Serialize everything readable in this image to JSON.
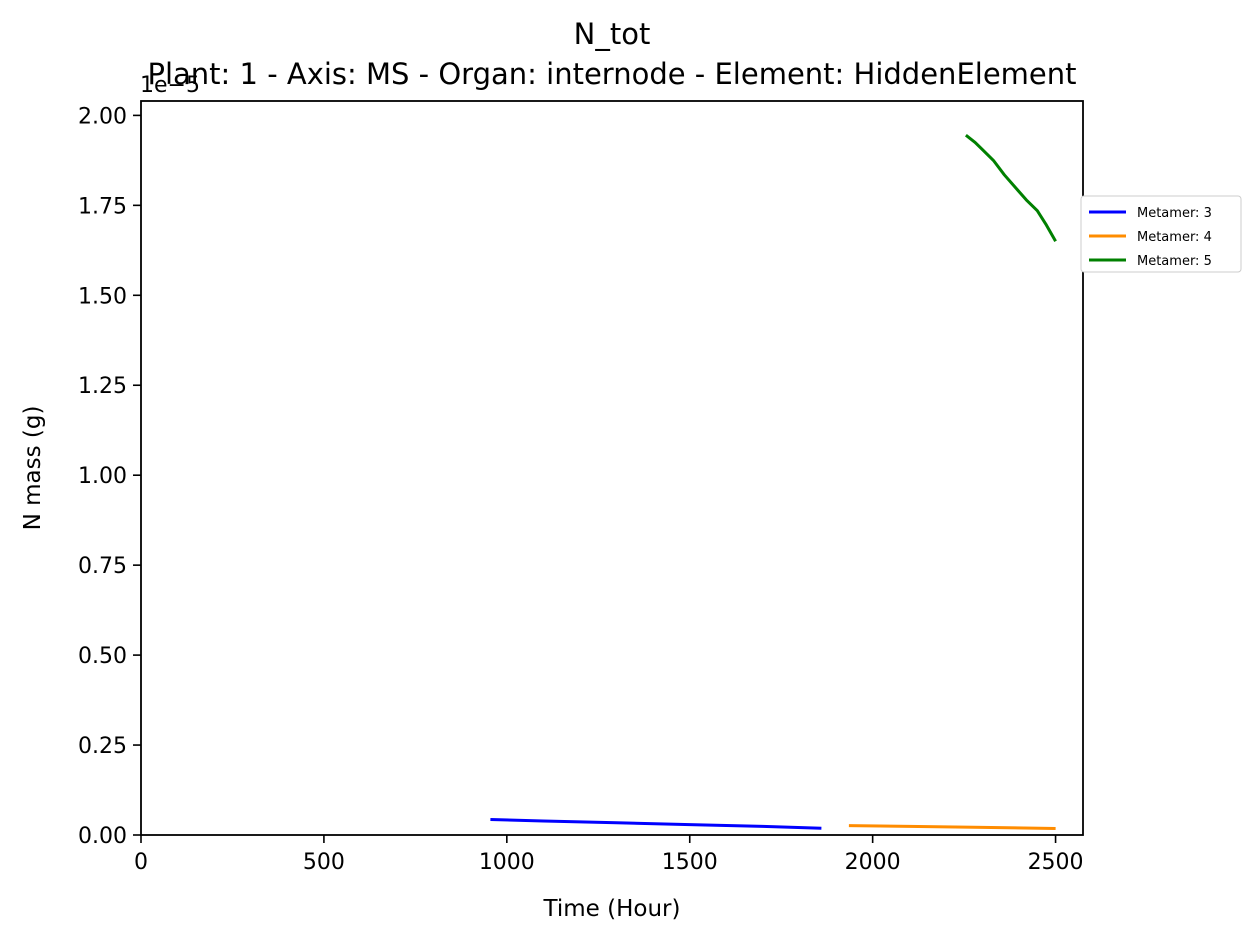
{
  "chart_data": {
    "type": "line",
    "title": "N_tot",
    "subtitle": "Plant: 1 - Axis: MS - Organ: internode - Element: HiddenElement",
    "xlabel": "Time (Hour)",
    "ylabel": "N mass (g)",
    "y_offset_label": "1e−5",
    "xlim": [
      0,
      2575
    ],
    "ylim": [
      0,
      2.04
    ],
    "xticks": [
      0,
      500,
      1000,
      1500,
      2000,
      2500
    ],
    "xtick_labels": [
      "0",
      "500",
      "1000",
      "1500",
      "2000",
      "2500"
    ],
    "yticks": [
      0,
      0.25,
      0.5,
      0.75,
      1.0,
      1.25,
      1.5,
      1.75,
      2.0
    ],
    "ytick_labels": [
      "0.00",
      "0.25",
      "0.50",
      "0.75",
      "1.00",
      "1.25",
      "1.50",
      "1.75",
      "2.00"
    ],
    "grid": false,
    "legend_position": "right",
    "series": [
      {
        "name": "Metamer: 3",
        "color": "#0000ff",
        "x": [
          955,
          1100,
          1300,
          1500,
          1700,
          1860
        ],
        "y": [
          0.043,
          0.039,
          0.034,
          0.029,
          0.024,
          0.019
        ]
      },
      {
        "name": "Metamer: 4",
        "color": "#ff8c00",
        "x": [
          1935,
          2100,
          2300,
          2500
        ],
        "y": [
          0.026,
          0.024,
          0.021,
          0.018
        ]
      },
      {
        "name": "Metamer: 5",
        "color": "#008000",
        "x": [
          2255,
          2280,
          2300,
          2330,
          2360,
          2390,
          2420,
          2450,
          2475,
          2500
        ],
        "y": [
          1.945,
          1.925,
          1.905,
          1.875,
          1.835,
          1.8,
          1.765,
          1.735,
          1.695,
          1.65
        ]
      }
    ]
  }
}
